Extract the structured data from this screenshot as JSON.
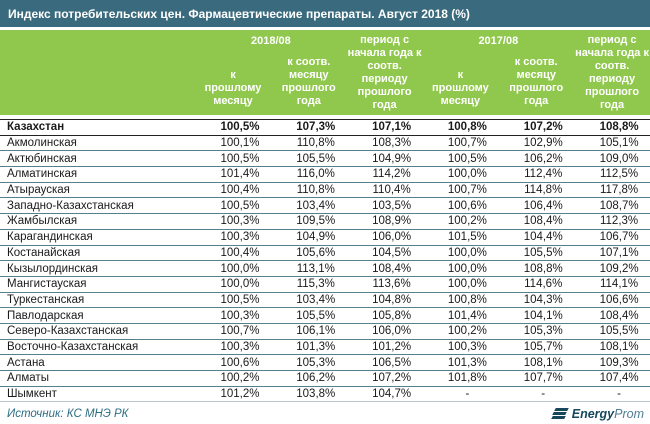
{
  "title": "Индекс потребительских цен. Фармацевтические препараты. Август 2018 (%)",
  "colors": {
    "titleBar": "#3A6A7D",
    "headerGreen": "#90C84E",
    "rowLine": "#57808F",
    "totalLine": "#222222",
    "lastLine": "#B9C6CC",
    "footerText": "#2E6E84",
    "logoDark": "#16475B",
    "logoLight": "#4E7F93",
    "bottomBar": "#1F5765"
  },
  "table": {
    "groups": [
      {
        "label": "2018/08"
      },
      {
        "label": "2017/08"
      }
    ],
    "subheaders": {
      "to_prev_month": "к\nпрошлому\nмесяцу",
      "to_same_month_prev_year": "к соотв.\nмесяцу\nпрошлого года",
      "ytd_vs_prev_ytd": "период с\nначала года к\nсоотв. периоду\nпрошлого года"
    },
    "rows": [
      {
        "region": "Казахстан",
        "bold": true,
        "values": [
          "100,5%",
          "107,3%",
          "107,1%",
          "100,8%",
          "107,2%",
          "108,8%"
        ]
      },
      {
        "region": "Акмолинская",
        "values": [
          "100,1%",
          "110,8%",
          "108,3%",
          "100,7%",
          "102,9%",
          "105,1%"
        ]
      },
      {
        "region": "Актюбинская",
        "values": [
          "100,5%",
          "105,5%",
          "104,9%",
          "100,5%",
          "106,2%",
          "109,0%"
        ]
      },
      {
        "region": "Алматинская",
        "values": [
          "101,4%",
          "116,0%",
          "114,2%",
          "100,0%",
          "112,4%",
          "112,5%"
        ]
      },
      {
        "region": "Атырауская",
        "values": [
          "100,4%",
          "110,8%",
          "110,4%",
          "100,7%",
          "114,8%",
          "117,8%"
        ]
      },
      {
        "region": "Западно-Казахстанская",
        "values": [
          "100,5%",
          "103,4%",
          "103,5%",
          "100,6%",
          "106,4%",
          "108,7%"
        ]
      },
      {
        "region": "Жамбылская",
        "values": [
          "100,3%",
          "109,5%",
          "108,9%",
          "100,2%",
          "108,4%",
          "112,3%"
        ]
      },
      {
        "region": "Карагандинская",
        "values": [
          "100,3%",
          "104,9%",
          "106,0%",
          "101,5%",
          "104,4%",
          "106,7%"
        ]
      },
      {
        "region": "Костанайская",
        "values": [
          "100,4%",
          "105,6%",
          "104,5%",
          "100,0%",
          "105,5%",
          "107,1%"
        ]
      },
      {
        "region": "Кызылординская",
        "values": [
          "100,0%",
          "113,1%",
          "108,4%",
          "100,0%",
          "108,8%",
          "109,2%"
        ]
      },
      {
        "region": "Мангистауская",
        "values": [
          "100,0%",
          "115,3%",
          "113,6%",
          "100,0%",
          "114,6%",
          "114,1%"
        ]
      },
      {
        "region": "Туркестанская",
        "values": [
          "100,5%",
          "103,4%",
          "104,8%",
          "100,8%",
          "104,3%",
          "106,6%"
        ]
      },
      {
        "region": "Павлодарская",
        "values": [
          "100,3%",
          "105,5%",
          "105,8%",
          "101,4%",
          "104,1%",
          "108,4%"
        ]
      },
      {
        "region": "Северо-Казахстанская",
        "values": [
          "100,7%",
          "106,1%",
          "106,0%",
          "100,2%",
          "105,3%",
          "105,5%"
        ]
      },
      {
        "region": "Восточно-Казахстанская",
        "values": [
          "100,3%",
          "101,3%",
          "101,2%",
          "100,3%",
          "105,7%",
          "108,1%"
        ]
      },
      {
        "region": "Астана",
        "values": [
          "100,6%",
          "105,3%",
          "106,5%",
          "101,3%",
          "108,1%",
          "109,3%"
        ]
      },
      {
        "region": "Алматы",
        "values": [
          "100,2%",
          "106,2%",
          "107,2%",
          "101,8%",
          "107,7%",
          "107,4%"
        ]
      },
      {
        "region": "Шымкент",
        "values": [
          "101,2%",
          "103,8%",
          "104,7%",
          "-",
          "-",
          "-"
        ]
      }
    ]
  },
  "footer": {
    "source": "Источник: КС МНЭ РК",
    "logo": {
      "bold": "Energy",
      "light": "Prom"
    }
  }
}
